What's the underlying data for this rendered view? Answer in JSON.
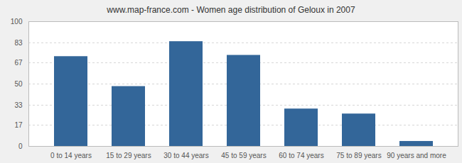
{
  "chart_data": {
    "type": "bar",
    "title": "www.map-france.com - Women age distribution of Geloux in 2007",
    "categories": [
      "0 to 14 years",
      "15 to 29 years",
      "30 to 44 years",
      "45 to 59 years",
      "60 to 74 years",
      "75 to 89 years",
      "90 years and more"
    ],
    "values": [
      72,
      48,
      84,
      73,
      30,
      26,
      4
    ],
    "color": "#336699",
    "ylim": [
      0,
      100
    ],
    "yticks": [
      0,
      17,
      33,
      50,
      67,
      83,
      100
    ],
    "grid": true
  }
}
